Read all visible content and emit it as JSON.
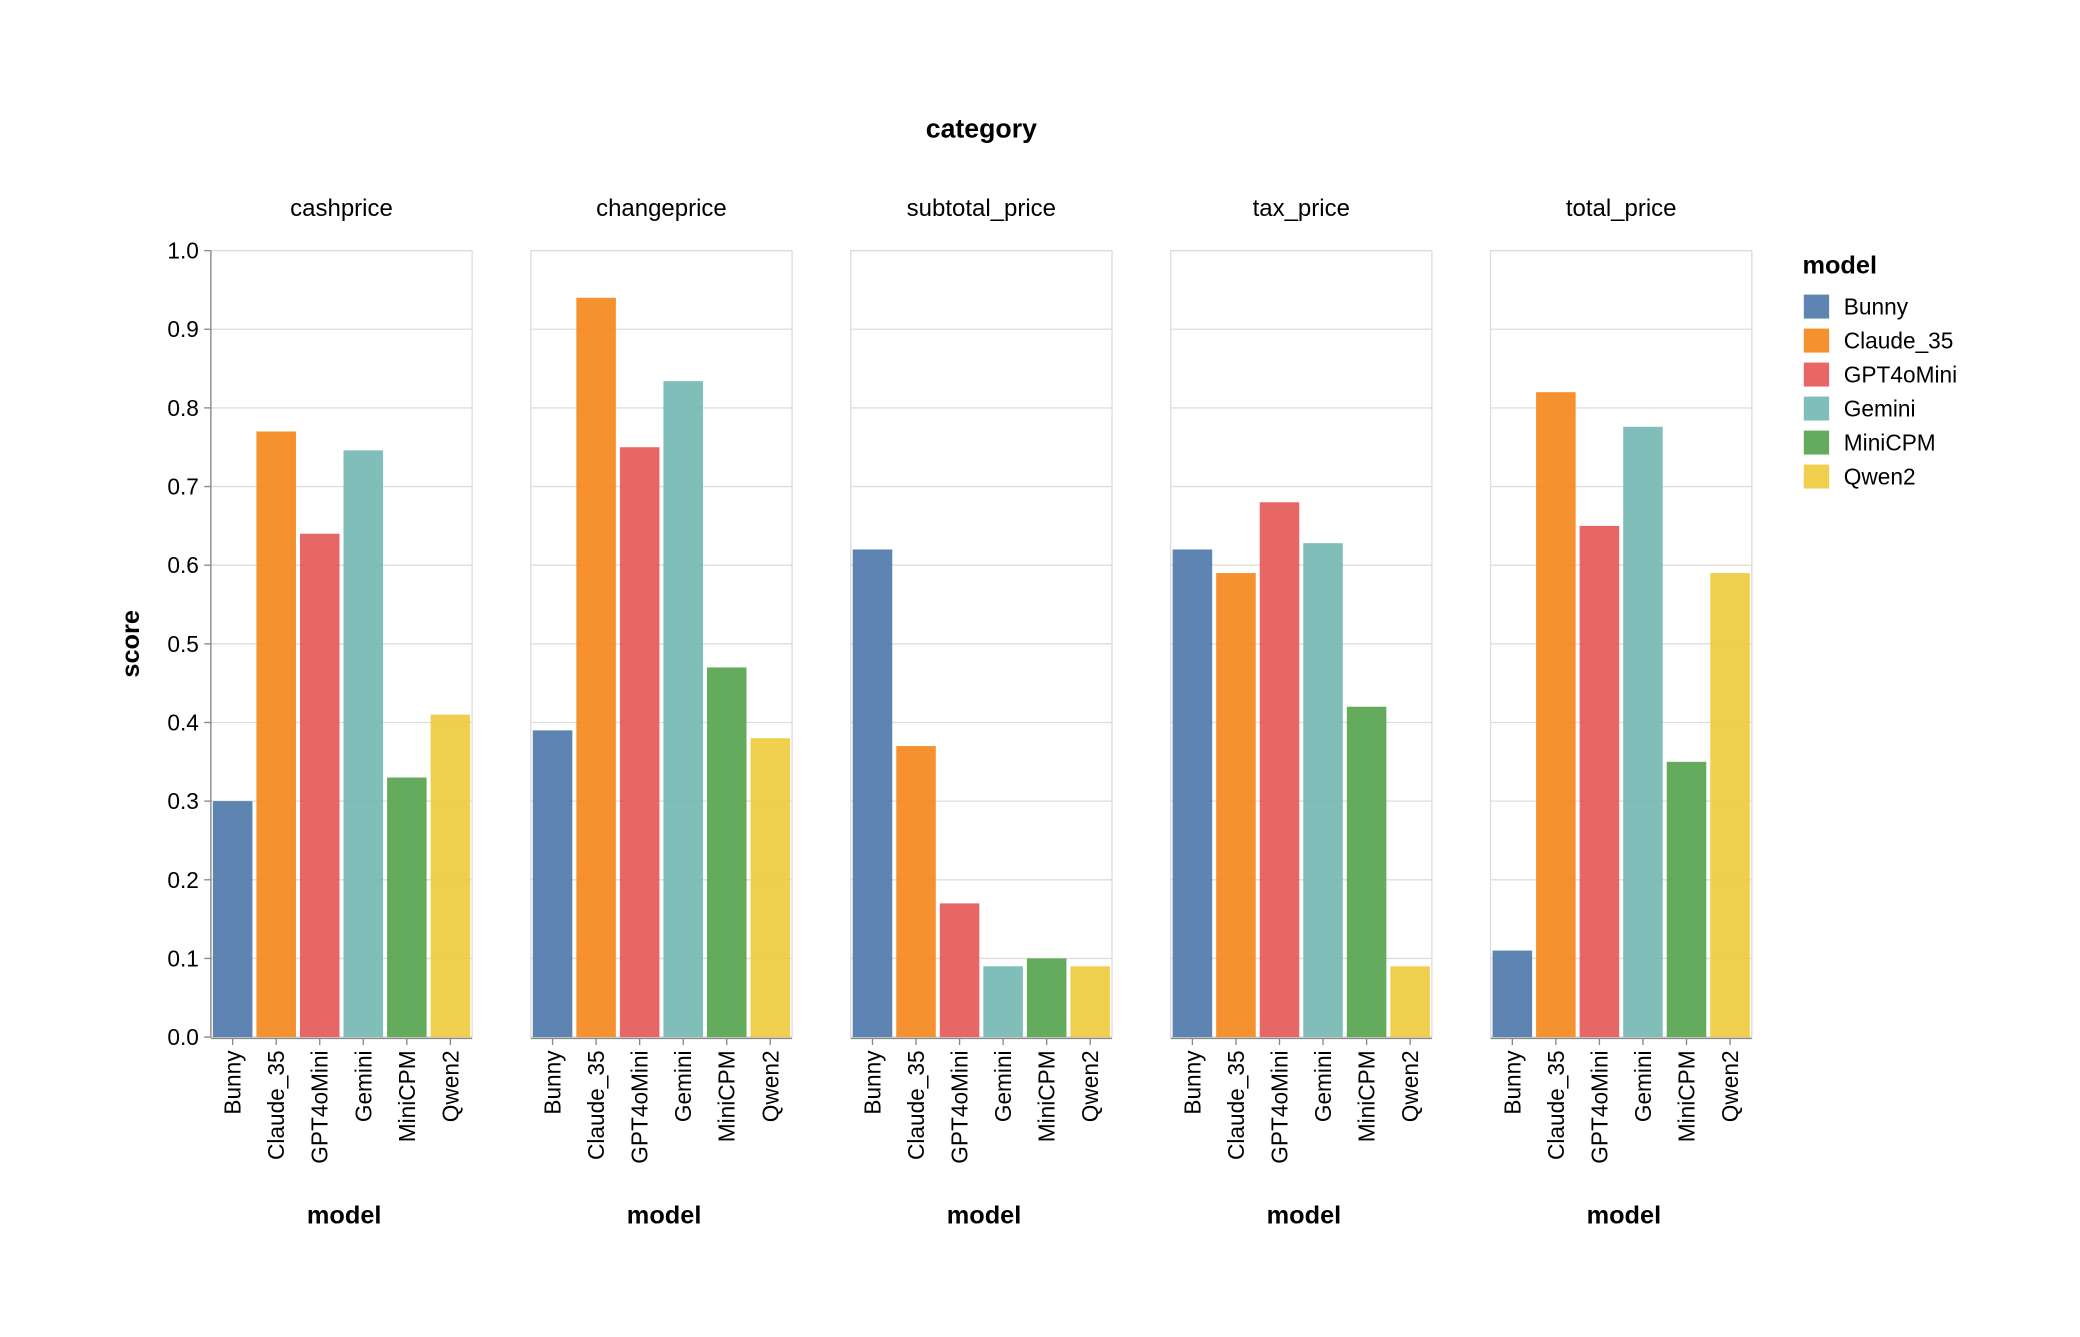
{
  "chart_data": {
    "type": "bar",
    "facet_title": "category",
    "facets": [
      "cashprice",
      "changeprice",
      "subtotal_price",
      "tax_price",
      "total_price"
    ],
    "categories": [
      "Bunny",
      "Claude_35",
      "GPT4oMini",
      "Gemini",
      "MiniCPM",
      "Qwen2"
    ],
    "values": {
      "cashprice": [
        0.3,
        0.77,
        0.64,
        0.746,
        0.33,
        0.41
      ],
      "changeprice": [
        0.39,
        0.94,
        0.75,
        0.834,
        0.47,
        0.38
      ],
      "subtotal_price": [
        0.62,
        0.37,
        0.17,
        0.09,
        0.1,
        0.09
      ],
      "tax_price": [
        0.62,
        0.59,
        0.68,
        0.628,
        0.42,
        0.09
      ],
      "total_price": [
        0.11,
        0.82,
        0.65,
        0.776,
        0.35,
        0.59
      ]
    },
    "xlabel": "model",
    "ylabel": "score",
    "ylim": [
      0,
      1
    ],
    "yticks": [
      "0.0",
      "0.1",
      "0.2",
      "0.3",
      "0.4",
      "0.5",
      "0.6",
      "0.7",
      "0.8",
      "0.9",
      "1.0"
    ],
    "grid": true,
    "legend": {
      "title": "model",
      "placement": "right",
      "entries": [
        "Bunny",
        "Claude_35",
        "GPT4oMini",
        "Gemini",
        "MiniCPM",
        "Qwen2"
      ]
    },
    "colors": [
      "#4c78a8",
      "#f58518",
      "#e45756",
      "#72b7b2",
      "#54a24b",
      "#eeca3b"
    ]
  }
}
